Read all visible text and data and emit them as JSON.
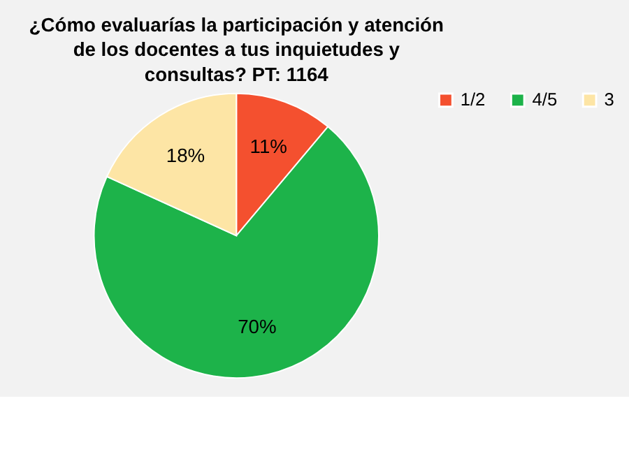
{
  "chart_data": {
    "type": "pie",
    "title": "¿Cómo evaluarías la participación y atención de los docentes a tus inquietudes y consultas? PT: 1164",
    "categories": [
      "1/2",
      "4/5",
      "3"
    ],
    "values": [
      11,
      70,
      18
    ],
    "colors": [
      "#f4502f",
      "#1db34a",
      "#fde5a5"
    ],
    "value_labels": [
      "11%",
      "70%",
      "18%"
    ],
    "legend": "right"
  }
}
